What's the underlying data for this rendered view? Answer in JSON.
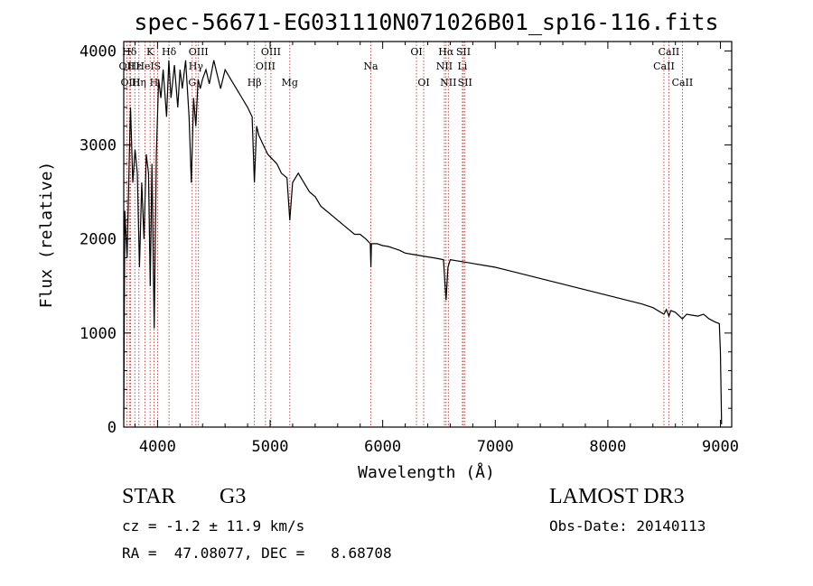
{
  "chart_data": {
    "type": "line",
    "title": "spec-56671-EG031110N071026B01_sp16-116.fits",
    "xlabel": "Wavelength (Å)",
    "ylabel": "Flux (relative)",
    "xlim": [
      3700,
      9100
    ],
    "ylim": [
      0,
      4100
    ],
    "xticks": [
      4000,
      5000,
      6000,
      7000,
      8000,
      9000
    ],
    "yticks": [
      0,
      1000,
      2000,
      3000,
      4000
    ],
    "series": [
      {
        "name": "flux",
        "x": [
          3700,
          3710,
          3730,
          3750,
          3760,
          3780,
          3800,
          3820,
          3840,
          3860,
          3880,
          3900,
          3920,
          3935,
          3950,
          3970,
          3990,
          4010,
          4030,
          4050,
          4080,
          4100,
          4120,
          4150,
          4180,
          4200,
          4220,
          4250,
          4280,
          4300,
          4320,
          4340,
          4360,
          4380,
          4400,
          4430,
          4460,
          4500,
          4530,
          4560,
          4600,
          4650,
          4700,
          4750,
          4800,
          4840,
          4860,
          4880,
          4900,
          4940,
          4980,
          5020,
          5060,
          5100,
          5150,
          5175,
          5200,
          5250,
          5300,
          5350,
          5400,
          5450,
          5500,
          5550,
          5600,
          5650,
          5700,
          5750,
          5800,
          5850,
          5890,
          5895,
          5900,
          5950,
          6000,
          6050,
          6100,
          6150,
          6200,
          6250,
          6300,
          6350,
          6400,
          6450,
          6500,
          6540,
          6563,
          6580,
          6600,
          6650,
          6700,
          6750,
          6800,
          6900,
          7000,
          7100,
          7200,
          7300,
          7400,
          7500,
          7600,
          7700,
          7800,
          7900,
          8000,
          8100,
          8200,
          8300,
          8400,
          8498,
          8520,
          8542,
          8560,
          8600,
          8662,
          8700,
          8750,
          8800,
          8850,
          8900,
          8950,
          8990,
          9000,
          9010
        ],
        "y": [
          80,
          2300,
          1800,
          2900,
          3400,
          2600,
          2950,
          2700,
          1700,
          2600,
          2000,
          2900,
          2700,
          1500,
          2800,
          1050,
          2900,
          3700,
          3500,
          3800,
          3300,
          3900,
          3500,
          3850,
          3400,
          3800,
          3600,
          3900,
          3300,
          2600,
          3500,
          3200,
          3700,
          3600,
          3700,
          3800,
          3650,
          3900,
          3750,
          3600,
          3800,
          3700,
          3600,
          3500,
          3400,
          3300,
          2600,
          3200,
          3100,
          3000,
          2900,
          2850,
          2800,
          2700,
          2650,
          2200,
          2600,
          2700,
          2600,
          2500,
          2450,
          2350,
          2300,
          2250,
          2200,
          2150,
          2100,
          2050,
          2050,
          2000,
          1950,
          1700,
          1950,
          1950,
          1930,
          1920,
          1900,
          1880,
          1850,
          1840,
          1830,
          1820,
          1810,
          1800,
          1790,
          1780,
          1350,
          1700,
          1780,
          1770,
          1760,
          1750,
          1740,
          1720,
          1700,
          1670,
          1640,
          1610,
          1580,
          1550,
          1520,
          1490,
          1460,
          1430,
          1400,
          1370,
          1340,
          1310,
          1270,
          1200,
          1250,
          1180,
          1240,
          1220,
          1150,
          1200,
          1190,
          1180,
          1200,
          1150,
          1120,
          1100,
          800,
          30
        ]
      }
    ],
    "spectral_lines": [
      {
        "name": "Hδ",
        "wavelength": 3750,
        "row": 1
      },
      {
        "name": "OII",
        "wavelength": 3727,
        "row": 2
      },
      {
        "name": "OIII",
        "wavelength": 3760,
        "row": 3
      },
      {
        "name": "Hε",
        "wavelength": 3798,
        "row": 2
      },
      {
        "name": "Hη",
        "wavelength": 3835,
        "row": 3
      },
      {
        "name": "K",
        "wavelength": 3934,
        "row": 1
      },
      {
        "name": "HeI",
        "wavelength": 3889,
        "row": 2
      },
      {
        "name": "H",
        "wavelength": 3968,
        "row": 3
      },
      {
        "name": "Hδ",
        "wavelength": 4102,
        "row": 1
      },
      {
        "name": "S",
        "wavelength": 4000,
        "row": 2
      },
      {
        "name": "OIII",
        "wavelength": 4364,
        "row": 1
      },
      {
        "name": "Hγ",
        "wavelength": 4341,
        "row": 2
      },
      {
        "name": "G",
        "wavelength": 4308,
        "row": 3
      },
      {
        "name": "Hβ",
        "wavelength": 4861,
        "row": 3
      },
      {
        "name": "OIII",
        "wavelength": 5007,
        "row": 1
      },
      {
        "name": "OIII",
        "wavelength": 4959,
        "row": 2
      },
      {
        "name": "Mg",
        "wavelength": 5175,
        "row": 3
      },
      {
        "name": "Na",
        "wavelength": 5894,
        "row": 2
      },
      {
        "name": "OI",
        "wavelength": 6300,
        "row": 1
      },
      {
        "name": "OI",
        "wavelength": 6364,
        "row": 3
      },
      {
        "name": "Hα",
        "wavelength": 6563,
        "row": 1
      },
      {
        "name": "NII",
        "wavelength": 6548,
        "row": 2
      },
      {
        "name": "NII",
        "wavelength": 6583,
        "row": 3
      },
      {
        "name": "SII",
        "wavelength": 6717,
        "row": 1
      },
      {
        "name": "Li",
        "wavelength": 6708,
        "row": 2
      },
      {
        "name": "SII",
        "wavelength": 6731,
        "row": 3
      },
      {
        "name": "CaII",
        "wavelength": 8542,
        "row": 1
      },
      {
        "name": "CaII",
        "wavelength": 8498,
        "row": 2
      },
      {
        "name": "CaII",
        "wavelength": 8662,
        "row": 3
      }
    ],
    "line_color": "#000000",
    "marker_color": "#b22222"
  },
  "info": {
    "object_class": "STAR",
    "subclass": "G3",
    "survey": "LAMOST DR3",
    "redshift": "cz = -1.2 ± 11.9 km/s",
    "obs_date": "Obs-Date: 20140113",
    "coords": "RA =  47.08077, DEC =   8.68708"
  }
}
